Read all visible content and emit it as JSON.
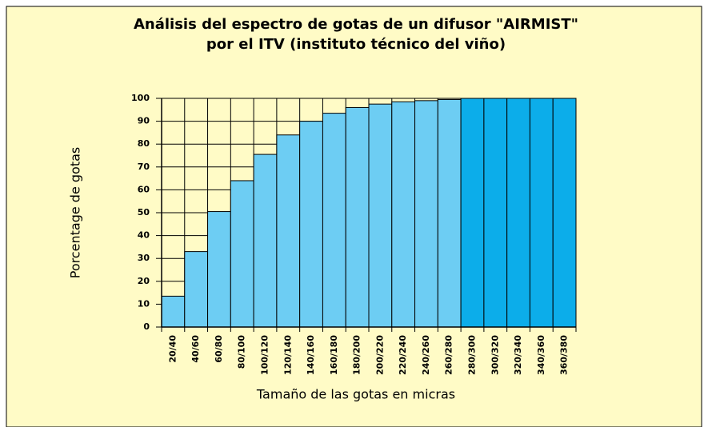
{
  "chart_data": {
    "type": "bar",
    "title": [
      "Análisis del espectro de gotas de un difusor \"AIRMIST\"",
      "por el ITV (instituto técnico del viño)"
    ],
    "x_label": "Tamaño de las gotas en micras",
    "y_label": "Porcentage de gotas",
    "categories": [
      "20/40",
      "40/60",
      "60/80",
      "80/100",
      "100/120",
      "120/140",
      "140/160",
      "160/180",
      "180/200",
      "200/220",
      "220/240",
      "240/260",
      "260/280",
      "280/300",
      "300/320",
      "320/340",
      "340/360",
      "360/380"
    ],
    "values": [
      13.5,
      33,
      50.5,
      64,
      75.5,
      84,
      90,
      93.5,
      96,
      97.5,
      98.5,
      99,
      99.5,
      100,
      100,
      100,
      100,
      100
    ],
    "colors": [
      "#6dcdf3",
      "#6dcdf3",
      "#6dcdf3",
      "#6dcdf3",
      "#6dcdf3",
      "#6dcdf3",
      "#6dcdf3",
      "#6dcdf3",
      "#6dcdf3",
      "#6dcdf3",
      "#6dcdf3",
      "#6dcdf3",
      "#6dcdf3",
      "#0cadea",
      "#0cadea",
      "#0cadea",
      "#0cadea",
      "#0cadea"
    ],
    "ylim": [
      0,
      100
    ],
    "yticks": [
      0,
      10,
      20,
      30,
      40,
      50,
      60,
      70,
      80,
      90,
      100
    ],
    "grid": true
  }
}
